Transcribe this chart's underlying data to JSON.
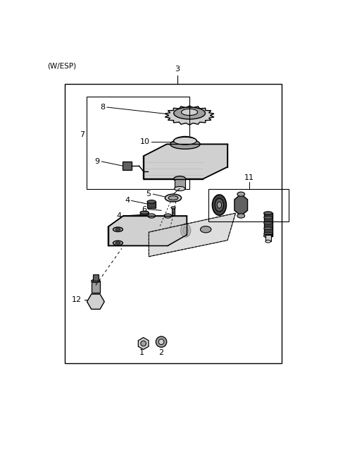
{
  "title": "(W/ESP)",
  "bg": "#ffffff",
  "lc": "#000000",
  "gray1": "#d0d0d0",
  "gray2": "#a0a0a0",
  "gray3": "#606060",
  "gray4": "#404040",
  "figsize": [
    4.8,
    6.38
  ],
  "dpi": 100
}
